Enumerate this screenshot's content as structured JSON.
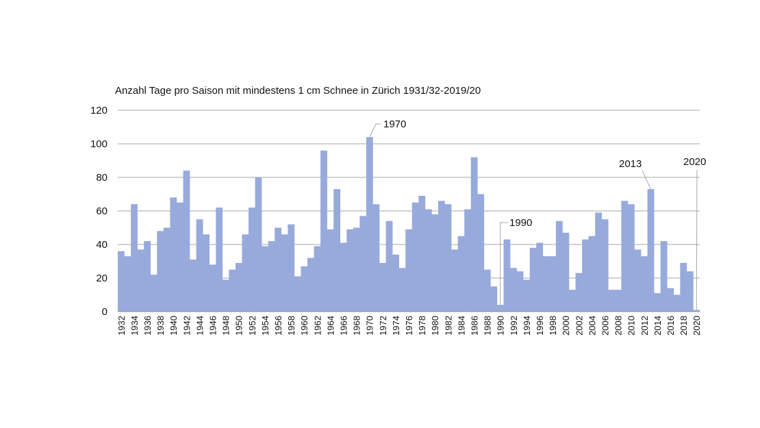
{
  "chart_data": {
    "type": "bar",
    "title": "Anzahl Tage pro Saison mit mindestens 1 cm Schnee in Zürich 1931/32-2019/20",
    "xlabel": "",
    "ylabel": "",
    "ylim": [
      0,
      120
    ],
    "yticks": [
      "0",
      "20",
      "40",
      "60",
      "80",
      "100",
      "120"
    ],
    "grid": true,
    "bar_color": "#97aadb",
    "grid_color": "#a6a6a6",
    "categories": [
      1932,
      1933,
      1934,
      1935,
      1936,
      1937,
      1938,
      1939,
      1940,
      1941,
      1942,
      1943,
      1944,
      1945,
      1946,
      1947,
      1948,
      1949,
      1950,
      1951,
      1952,
      1953,
      1954,
      1955,
      1956,
      1957,
      1958,
      1959,
      1960,
      1961,
      1962,
      1963,
      1964,
      1965,
      1966,
      1967,
      1968,
      1969,
      1970,
      1971,
      1972,
      1973,
      1974,
      1975,
      1976,
      1977,
      1978,
      1979,
      1980,
      1981,
      1982,
      1983,
      1984,
      1985,
      1986,
      1987,
      1988,
      1989,
      1990,
      1991,
      1992,
      1993,
      1994,
      1995,
      1996,
      1997,
      1998,
      1999,
      2000,
      2001,
      2002,
      2003,
      2004,
      2005,
      2006,
      2007,
      2008,
      2009,
      2010,
      2011,
      2012,
      2013,
      2014,
      2015,
      2016,
      2017,
      2018,
      2019,
      2020
    ],
    "values": [
      36,
      33,
      64,
      37,
      42,
      22,
      48,
      50,
      68,
      65,
      84,
      31,
      55,
      46,
      28,
      62,
      19,
      25,
      29,
      46,
      62,
      80,
      39,
      42,
      50,
      46,
      52,
      21,
      27,
      32,
      39,
      96,
      49,
      73,
      41,
      49,
      50,
      57,
      104,
      64,
      29,
      54,
      34,
      26,
      49,
      65,
      69,
      61,
      58,
      66,
      64,
      37,
      45,
      61,
      92,
      70,
      25,
      15,
      4,
      43,
      26,
      24,
      19,
      38,
      41,
      33,
      33,
      54,
      47,
      13,
      23,
      43,
      45,
      59,
      55,
      13,
      13,
      66,
      64,
      37,
      33,
      73,
      11,
      42,
      14,
      10,
      29,
      24,
      1
    ],
    "annotations": [
      {
        "year": 1970,
        "text": "1970"
      },
      {
        "year": 1990,
        "text": "1990"
      },
      {
        "year": 2013,
        "text": "2013"
      },
      {
        "year": 2020,
        "text": "2020"
      }
    ]
  }
}
